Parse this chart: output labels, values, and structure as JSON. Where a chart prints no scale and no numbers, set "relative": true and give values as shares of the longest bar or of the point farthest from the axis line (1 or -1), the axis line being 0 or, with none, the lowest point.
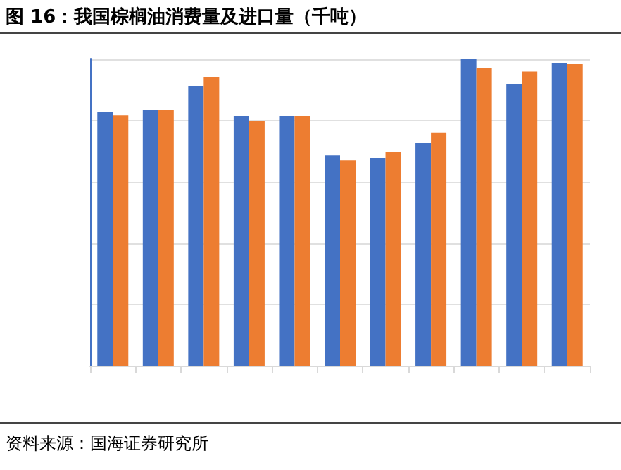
{
  "chart_data": {
    "type": "bar",
    "title": "图 16：我国棕榈油消费量及进口量（千吨）",
    "relative": true,
    "grid": "y",
    "categories": [
      null,
      null,
      null,
      null,
      null,
      null,
      null,
      null,
      null,
      null,
      null
    ],
    "series": [
      {
        "color": "#4472c4",
        "values": [
          0.828,
          0.834,
          0.913,
          0.814,
          0.814,
          0.685,
          0.679,
          0.727,
          1,
          0.919,
          0.988
        ]
      },
      {
        "color": "#ed7d31",
        "values": [
          0.816,
          0.834,
          0.941,
          0.798,
          0.814,
          0.669,
          0.697,
          0.76,
          0.97,
          0.96,
          0.984
        ]
      }
    ],
    "annotations": [
      "资料来源：国海证券研究所"
    ]
  }
}
